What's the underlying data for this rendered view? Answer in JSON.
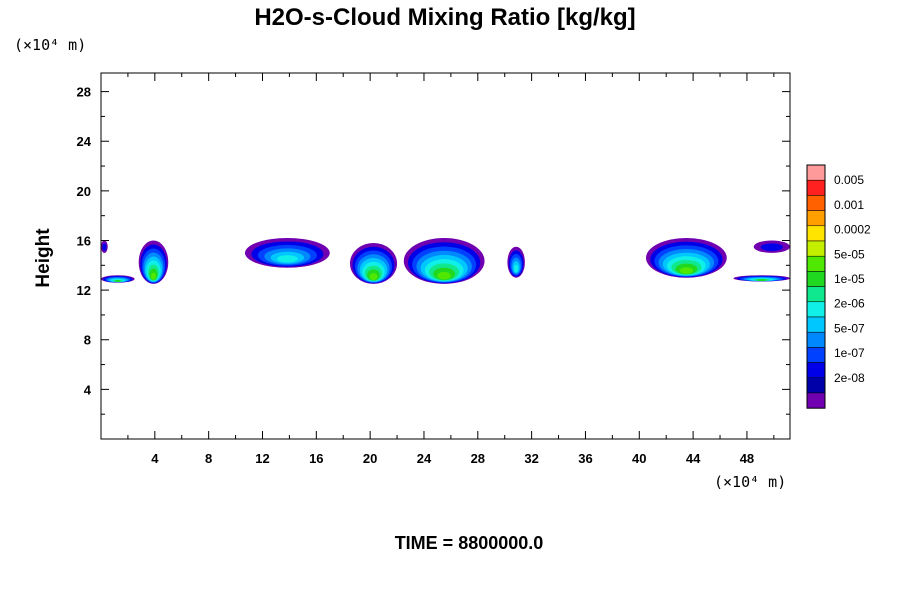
{
  "chart_data": {
    "type": "contour",
    "title": "H2O-s-Cloud Mixing Ratio [kg/kg]",
    "ylabel": "Height",
    "x_unit": "(×10⁴ m)",
    "y_unit": "(×10⁴ m)",
    "x_ticks": [
      4,
      8,
      12,
      16,
      20,
      24,
      28,
      32,
      36,
      40,
      44,
      48
    ],
    "y_ticks": [
      4,
      8,
      12,
      16,
      20,
      24,
      28
    ],
    "xlim": [
      0,
      51.2
    ],
    "ylim": [
      0,
      29.5
    ],
    "colorbar": {
      "labels": [
        "0.005",
        "0.001",
        "0.0002",
        "5e-05",
        "1e-05",
        "2e-06",
        "5e-07",
        "1e-07",
        "2e-08"
      ],
      "colors": [
        "#ff9a9a",
        "#ff2020",
        "#ff6000",
        "#ffa000",
        "#ffe400",
        "#c4f000",
        "#50e800",
        "#20d820",
        "#10e890",
        "#10f0e8",
        "#00c8ff",
        "#0088ff",
        "#0040ff",
        "#0000e8",
        "#0000a8",
        "#7000b0"
      ]
    },
    "cloud_regions": [
      {
        "x_range": [
          0,
          0.5
        ],
        "z_range": [
          15.0,
          16.0
        ],
        "max_level": "2e-08"
      },
      {
        "x_range": [
          0,
          2.5
        ],
        "z_range": [
          12.6,
          13.2
        ],
        "max_level": "2e-06"
      },
      {
        "x_range": [
          2.8,
          5.0
        ],
        "z_range": [
          12.5,
          16.0
        ],
        "max_level": "1e-05"
      },
      {
        "x_range": [
          10.7,
          17.0
        ],
        "z_range": [
          13.8,
          16.2
        ],
        "max_level": "5e-07"
      },
      {
        "x_range": [
          18.5,
          22.0
        ],
        "z_range": [
          12.5,
          15.8
        ],
        "max_level": "1e-05"
      },
      {
        "x_range": [
          22.5,
          28.5
        ],
        "z_range": [
          12.5,
          16.2
        ],
        "max_level": "1e-05"
      },
      {
        "x_range": [
          30.2,
          31.5
        ],
        "z_range": [
          13.0,
          15.5
        ],
        "max_level": "5e-07"
      },
      {
        "x_range": [
          40.5,
          46.5
        ],
        "z_range": [
          13.0,
          16.2
        ],
        "max_level": "1e-05"
      },
      {
        "x_range": [
          47.0,
          51.2
        ],
        "z_range": [
          12.7,
          13.2
        ],
        "max_level": "2e-06"
      },
      {
        "x_range": [
          48.5,
          51.2
        ],
        "z_range": [
          15.0,
          16.0
        ],
        "max_level": "2e-08"
      }
    ]
  },
  "footer": {
    "time_label": "TIME = 8800000.0"
  }
}
